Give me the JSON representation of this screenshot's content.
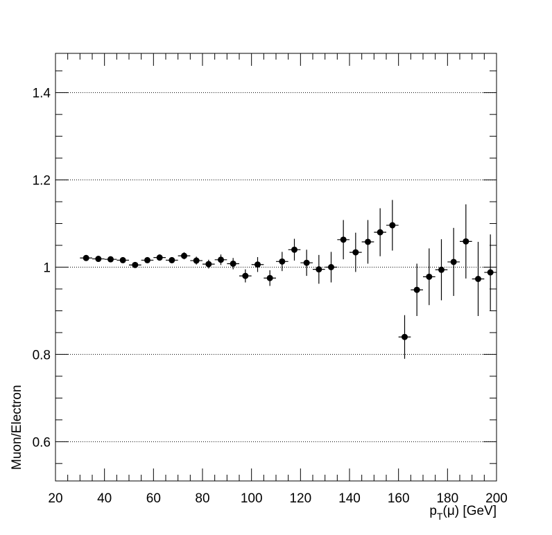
{
  "chart_data": {
    "type": "scatter",
    "xlabel": "p_T(μ) [GeV]",
    "xlabel_parts": {
      "main": "p",
      "sub": "T",
      "rest": "(μ) [GeV]"
    },
    "ylabel": "Muon/Electron",
    "xlim": [
      20,
      200
    ],
    "ylim": [
      0.51,
      1.49
    ],
    "x_ticks": [
      20,
      40,
      60,
      80,
      100,
      120,
      140,
      160,
      180,
      200
    ],
    "x_tick_labels": [
      "20",
      "40",
      "60",
      "80",
      "100",
      "120",
      "140",
      "160",
      "180",
      "200"
    ],
    "y_ticks": [
      0.6,
      0.8,
      1.0,
      1.2,
      1.4
    ],
    "y_tick_labels": [
      "0.6",
      "0.8",
      "1",
      "1.2",
      "1.4"
    ],
    "y_grid": true,
    "x_grid": false,
    "legend": "none",
    "series": [
      {
        "x": [
          32.5,
          37.5,
          42.5,
          47.5,
          52.5,
          57.5,
          62.5,
          67.5,
          72.5,
          77.5,
          82.5,
          87.5,
          92.5,
          97.5,
          102.5,
          107.5,
          112.5,
          117.5,
          122.5,
          127.5,
          132.5,
          137.5,
          142.5,
          147.5,
          152.5,
          157.5,
          162.5,
          167.5,
          172.5,
          177.5,
          182.5,
          187.5,
          192.5,
          197.5
        ],
        "y": [
          1.021,
          1.019,
          1.018,
          1.016,
          1.005,
          1.016,
          1.022,
          1.016,
          1.026,
          1.015,
          1.007,
          1.017,
          1.008,
          0.98,
          1.006,
          0.975,
          1.013,
          1.04,
          1.01,
          0.995,
          1.0,
          1.063,
          1.034,
          1.058,
          1.08,
          1.096,
          0.84,
          0.948,
          0.978,
          0.994,
          1.012,
          1.059,
          0.973,
          0.988
        ],
        "y_err": [
          0.004,
          0.004,
          0.004,
          0.005,
          0.005,
          0.006,
          0.007,
          0.007,
          0.008,
          0.009,
          0.01,
          0.012,
          0.013,
          0.015,
          0.017,
          0.018,
          0.022,
          0.025,
          0.03,
          0.033,
          0.035,
          0.045,
          0.045,
          0.05,
          0.055,
          0.058,
          0.05,
          0.06,
          0.065,
          0.07,
          0.078,
          0.085,
          0.085,
          0.087
        ],
        "x_err": [
          2.5,
          2.5,
          2.5,
          2.5,
          2.5,
          2.5,
          2.5,
          2.5,
          2.5,
          2.5,
          2.5,
          2.5,
          2.5,
          2.5,
          2.5,
          2.5,
          2.5,
          2.5,
          2.5,
          2.5,
          2.5,
          2.5,
          2.5,
          2.5,
          2.5,
          2.5,
          2.5,
          2.5,
          2.5,
          2.5,
          2.5,
          2.5,
          2.5,
          2.5
        ],
        "color": "#000000"
      }
    ]
  }
}
